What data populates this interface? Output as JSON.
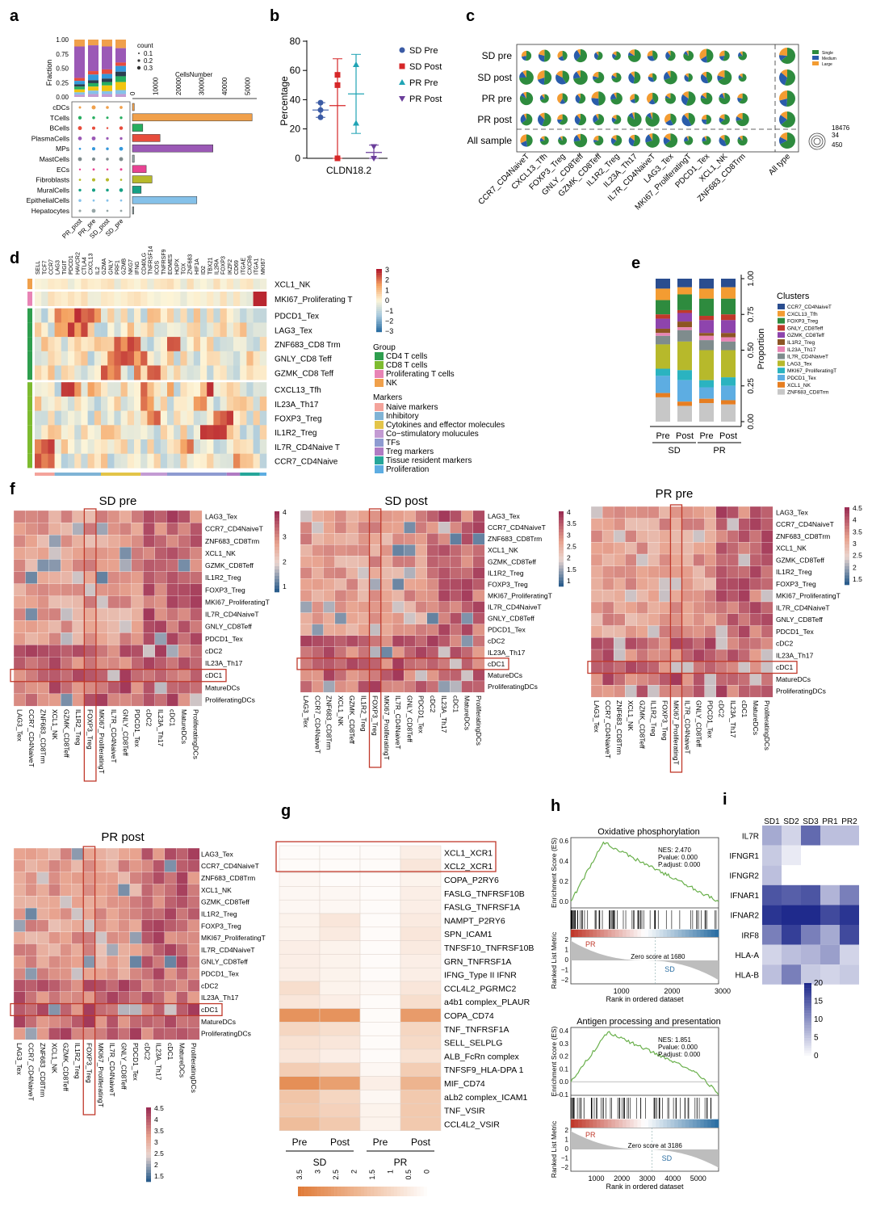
{
  "panels": {
    "a": {
      "letter": "a",
      "frac_axis_label": "Fraction",
      "frac_ticks": [
        "1.00",
        "0.75",
        "0.50",
        "0.25",
        "0.00"
      ],
      "size_legend_title": "count",
      "size_legend": [
        "0.1",
        "0.2",
        "0.3"
      ],
      "cellsnumber_title": "CellsNumber",
      "cellsnumber_ticks": [
        "0",
        "10000",
        "20000",
        "30000",
        "40000",
        "50000"
      ],
      "rows": [
        "cDCs",
        "TCells",
        "BCells",
        "PlasmaCells",
        "MPs",
        "MastCells",
        "ECs",
        "Fibroblasts",
        "MuralCells",
        "EpithelialCells",
        "Hepatocytes"
      ],
      "samples": [
        "PR_post",
        "PR_pre",
        "SD_post",
        "SD_pre"
      ]
    },
    "b": {
      "letter": "b",
      "ylabel": "Percentage",
      "yticks": [
        "80",
        "60",
        "40",
        "20",
        "0"
      ],
      "xlabel": "CLDN18.2",
      "legend": [
        "SD Pre",
        "SD Post",
        "PR Pre",
        "PR Post"
      ]
    },
    "c": {
      "letter": "c",
      "rows": [
        "SD pre",
        "SD post",
        "PR pre",
        "PR post",
        "All sample"
      ],
      "cols": [
        "CCR7_CD4NaiveT",
        "CXCL13_Tfh",
        "FOXP3_Treg",
        "GNLY_CD8Teff",
        "GZMK_CD8Teff",
        "IL1R2_Treg",
        "IL23A_Th17",
        "IL7R_CD4NaiveT",
        "LAG3_Tex",
        "MKI67_ProliferatingT",
        "PDCD1_Tex",
        "XCL1_NK",
        "ZNF683_CD8Trm",
        "All type"
      ],
      "legend": [
        "Single",
        "Medium",
        "Large"
      ],
      "size_legend": [
        "18476",
        "34",
        "450"
      ]
    },
    "d": {
      "letter": "d",
      "genes": [
        "SELL",
        "TCF7",
        "CCR7",
        "LAG3",
        "TIGIT",
        "PDCD1",
        "HAVCR2",
        "CTLA4",
        "CXCL13",
        "IL2",
        "GZMA",
        "GNLY",
        "PRF1",
        "GZMB",
        "NKG7",
        "IFNG",
        "CD40LG",
        "TNFRSF14",
        "ICOS",
        "TNFRSF9",
        "EOMES",
        "HOPX",
        "TOX",
        "ZNF683",
        "HIF1A",
        "ID2",
        "TBX21",
        "IL2RA",
        "FOXP3",
        "IKZF2",
        "CD69",
        "ITGAE",
        "CXCR6",
        "ITGA1",
        "MKI67"
      ],
      "rows": [
        "XCL1_NK",
        "MKI67_Proliferating T",
        "PDCD1_Tex",
        "LAG3_Tex",
        "ZNF683_CD8 Trm",
        "GNLY_CD8 Teff",
        "GZMK_CD8 Teff",
        "CXCL13_Tfh",
        "IL23A_Th17",
        "FOXP3_Treg",
        "IL1R2_Treg",
        "IL7R_CD4Naive T",
        "CCR7_CD4Naive"
      ],
      "scale": [
        "3",
        "2",
        "1",
        "0",
        "−1",
        "−2",
        "−3"
      ],
      "group_title": "Group",
      "groups": [
        "CD4 T cells",
        "CD8 T cells",
        "Proliferating T cells",
        "NK"
      ],
      "markers_title": "Markers",
      "markers": [
        "Naive markers",
        "Inhibitory",
        "Cytokines and effector molecules",
        "Co−stimulatory molucules",
        "TFs",
        "Treg markers",
        "Tissue resident markers",
        "Proliferation"
      ]
    },
    "e": {
      "letter": "e",
      "ylabel": "Proportion",
      "yticks": [
        "1.00",
        "0.75",
        "0.50",
        "0.25",
        "0.00"
      ],
      "bars": [
        "Pre",
        "Post",
        "Pre",
        "Post"
      ],
      "groups": [
        "SD",
        "PR"
      ],
      "legend_title": "Clusters",
      "clusters": [
        "CCR7_CD4NaiveT",
        "CXCL13_Tfh",
        "FOXP3_Treg",
        "GNLY_CD8Teff",
        "GZMK_CD8Teff",
        "IL1R2_Treg",
        "IL23A_Th17",
        "IL7R_CD4NaiveT",
        "LAG3_Tex",
        "MKI67_ProliferatingT",
        "PDCD1_Tex",
        "XCL1_NK",
        "ZNF683_CD8Trm"
      ]
    },
    "f": {
      "letter": "f",
      "heatmaps": [
        {
          "title": "SD pre",
          "rows": [
            "LAG3_Tex",
            "CCR7_CD4NaiveT",
            "ZNF683_CD8Trm",
            "XCL1_NK",
            "GZMK_CD8Teff",
            "IL1R2_Treg",
            "FOXP3_Treg",
            "MKI67_ProliferatingT",
            "IL7R_CD4NaiveT",
            "GNLY_CD8Teff",
            "PDCD1_Tex",
            "cDC2",
            "IL23A_Th17",
            "cDC1",
            "MatureDCs",
            "ProliferatingDCs"
          ],
          "scale": [
            "4",
            "3",
            "2",
            "1"
          ]
        },
        {
          "title": "SD post",
          "rows": [
            "LAG3_Tex",
            "CCR7_CD4NaiveT",
            "ZNF683_CD8Trm",
            "XCL1_NK",
            "GZMK_CD8Teff",
            "IL1R2_Treg",
            "FOXP3_Treg",
            "MKI67_ProliferatingT",
            "IL7R_CD4NaiveT",
            "GNLY_CD8Teff",
            "PDCD1_Tex",
            "cDC2",
            "IL23A_Th17",
            "cDC1",
            "MatureDCs",
            "ProliferatingDCs"
          ],
          "scale": [
            "4",
            "3.5",
            "3",
            "2.5",
            "2",
            "1.5",
            "1"
          ]
        },
        {
          "title": "PR pre",
          "rows": [
            "LAG3_Tex",
            "CCR7_CD4NaiveT",
            "ZNF683_CD8Trm",
            "XCL1_NK",
            "GZMK_CD8Teff",
            "IL1R2_Treg",
            "FOXP3_Treg",
            "MKI67_ProliferatingT",
            "IL7R_CD4NaiveT",
            "GNLY_CD8Teff",
            "PDCD1_Tex",
            "cDC2",
            "IL23A_Th17",
            "cDC1",
            "MatureDCs",
            "ProliferatingDCs"
          ],
          "scale": [
            "4.5",
            "4",
            "3.5",
            "3",
            "2.5",
            "2",
            "1.5"
          ]
        },
        {
          "title": "PR post",
          "rows": [
            "LAG3_Tex",
            "CCR7_CD4NaiveT",
            "ZNF683_CD8Trm",
            "XCL1_NK",
            "GZMK_CD8Teff",
            "IL1R2_Treg",
            "FOXP3_Treg",
            "MKI67_ProliferatingT",
            "IL7R_CD4NaiveT",
            "GNLY_CD8Teff",
            "PDCD1_Tex",
            "cDC2",
            "IL23A_Th17",
            "cDC1",
            "MatureDCs",
            "ProliferatingDCs"
          ],
          "scale": [
            "4.5",
            "4",
            "3.5",
            "3",
            "2.5",
            "2",
            "1.5"
          ]
        }
      ]
    },
    "g": {
      "letter": "g",
      "rows": [
        "XCL1_XCR1",
        "XCL2_XCR1",
        "COPA_P2RY6",
        "FASLG_TNFRSF10B",
        "FASLG_TNFRSF1A",
        "NAMPT_P2RY6",
        "SPN_ICAM1",
        "TNFSF10_TNFRSF10B",
        "GRN_TNFRSF1A",
        "IFNG_Type II IFNR",
        "CCL4L2_PGRMC2",
        "a4b1 complex_PLAUR",
        "COPA_CD74",
        "TNF_TNFRSF1A",
        "SELL_SELPLG",
        "ALB_FcRn complex",
        "TNFSF9_HLA-DPA 1",
        "MIF_CD74",
        "aLb2 complex_ICAM1",
        "TNF_VSIR",
        "CCL4L2_VSIR"
      ],
      "cols": [
        "Pre",
        "Post",
        "Pre",
        "Post"
      ],
      "groups": [
        "SD",
        "PR"
      ],
      "scale": [
        "3.5",
        "3",
        "2.5",
        "2",
        "1.5",
        "1",
        "0.5",
        "0"
      ],
      "values": [
        [
          0.1,
          0.1,
          0.1,
          0.4
        ],
        [
          0.1,
          0.1,
          0.1,
          0.6
        ],
        [
          0.2,
          0.1,
          0.1,
          0.3
        ],
        [
          0.2,
          0.2,
          0.1,
          0.4
        ],
        [
          0.2,
          0.2,
          0.1,
          0.4
        ],
        [
          0.3,
          0.6,
          0.1,
          0.5
        ],
        [
          0.3,
          0.5,
          0.1,
          0.6
        ],
        [
          0.4,
          0.3,
          0.1,
          0.5
        ],
        [
          0.4,
          0.3,
          0.1,
          0.4
        ],
        [
          0.4,
          0.3,
          0.1,
          0.4
        ],
        [
          0.8,
          0.3,
          0.2,
          0.6
        ],
        [
          0.6,
          0.4,
          0.1,
          0.8
        ],
        [
          2.6,
          2.6,
          0.1,
          2.4
        ],
        [
          1.0,
          0.8,
          0.1,
          1.0
        ],
        [
          0.7,
          0.6,
          0.1,
          0.9
        ],
        [
          0.6,
          0.4,
          0.1,
          0.7
        ],
        [
          1.2,
          1.0,
          0.2,
          1.2
        ],
        [
          2.7,
          2.3,
          0.4,
          1.8
        ],
        [
          1.4,
          1.0,
          0.2,
          1.3
        ],
        [
          1.3,
          1.1,
          0.3,
          1.3
        ],
        [
          1.6,
          1.3,
          0.3,
          1.3
        ]
      ]
    },
    "h": {
      "letter": "h",
      "plots": [
        {
          "title": "Oxidative phosphorylation",
          "nes": "NES:  2.470",
          "pval": "Pvalue:  0.000",
          "padj": "P.adjust:  0.000",
          "es_ticks": [
            "0.6",
            "0.4",
            "0.2",
            "0.0"
          ],
          "zero": "Zero score at 1680",
          "xticks": [
            "1000",
            "2000",
            "3000"
          ]
        },
        {
          "title": "Antigen processing and presentation",
          "nes": "NES:  1.851",
          "pval": "Pvalue:  0.000",
          "padj": "P.adjust:  0.000",
          "es_ticks": [
            "0.4",
            "0.3",
            "0.2",
            "0.1",
            "0.0",
            "−0.1"
          ],
          "zero": "Zero score at 3186",
          "xticks": [
            "1000",
            "2000",
            "3000",
            "4000",
            "5000"
          ]
        }
      ],
      "es_label": "Enrichment Score (ES)",
      "rank_label": "Ranked List Metric",
      "rank_ticks": [
        "2",
        "1",
        "0",
        "−1",
        "−2"
      ],
      "x_label": "Rank in ordered dataset",
      "pr": "PR",
      "sd": "SD"
    },
    "i": {
      "letter": "i",
      "cols": [
        "SD1",
        "SD2",
        "SD3",
        "PR1",
        "PR2"
      ],
      "rows": [
        "IL7R",
        "IFNGR1",
        "IFNGR2",
        "IFNAR1",
        "IFNAR2",
        "IRF8",
        "HLA-A",
        "HLA-B"
      ],
      "values": [
        [
          8,
          4,
          14,
          6,
          6
        ],
        [
          5,
          2,
          0,
          0,
          0
        ],
        [
          6,
          0,
          0,
          0,
          0
        ],
        [
          16,
          15,
          16,
          7,
          12
        ],
        [
          19,
          20,
          20,
          17,
          19
        ],
        [
          12,
          18,
          12,
          8,
          17
        ],
        [
          4,
          6,
          7,
          9,
          4
        ],
        [
          6,
          12,
          5,
          4,
          5
        ]
      ],
      "scale": [
        "20",
        "15",
        "10",
        "5",
        "0"
      ]
    }
  }
}
